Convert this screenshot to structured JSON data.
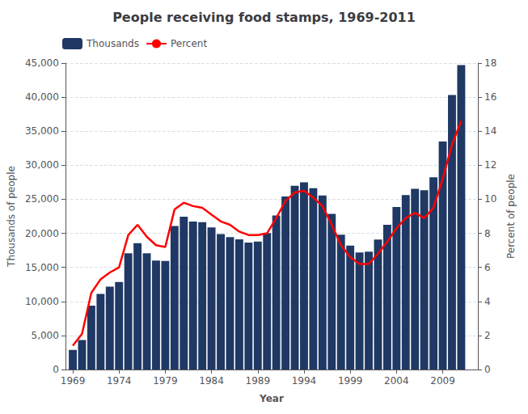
{
  "chart_data": {
    "type": "bar",
    "title": "People receiving food stamps, 1969-2011",
    "xlabel": "Year",
    "ylabel": "Thousands of people",
    "y2label": "Percent of people",
    "x": [
      1969,
      1970,
      1971,
      1972,
      1973,
      1974,
      1975,
      1976,
      1977,
      1978,
      1979,
      1980,
      1981,
      1982,
      1983,
      1984,
      1985,
      1986,
      1987,
      1988,
      1989,
      1990,
      1991,
      1992,
      1993,
      1994,
      1995,
      1996,
      1997,
      1998,
      1999,
      2000,
      2001,
      2002,
      2003,
      2004,
      2005,
      2006,
      2007,
      2008,
      2009,
      2010,
      2011
    ],
    "series": [
      {
        "name": "Thousands",
        "type": "bar",
        "color": "#1F3864",
        "values": [
          2878,
          4340,
          9368,
          11109,
          12166,
          12862,
          17064,
          18549,
          17077,
          16001,
          15942,
          21082,
          22430,
          21717,
          21625,
          20854,
          19899,
          19429,
          19113,
          18645,
          18800,
          20049,
          22625,
          25407,
          26987,
          27474,
          26619,
          25543,
          22858,
          19791,
          18183,
          17194,
          17318,
          19096,
          21250,
          23858,
          25628,
          26549,
          26316,
          28223,
          33490,
          40302,
          44709
        ]
      },
      {
        "name": "Percent",
        "type": "line",
        "color": "#FF0000",
        "axis": "y2",
        "values": [
          1.4,
          2.1,
          4.5,
          5.3,
          5.7,
          6.0,
          7.9,
          8.5,
          7.8,
          7.3,
          7.2,
          9.4,
          9.8,
          9.6,
          9.5,
          9.1,
          8.7,
          8.5,
          8.1,
          7.9,
          7.9,
          8.0,
          8.9,
          9.9,
          10.4,
          10.5,
          10.1,
          9.6,
          8.5,
          7.3,
          6.6,
          6.2,
          6.2,
          6.8,
          7.5,
          8.3,
          8.9,
          9.2,
          8.9,
          9.5,
          11.2,
          13.2,
          14.6
        ]
      }
    ],
    "xlim": [
      1968.2,
      2012.8
    ],
    "xticks": [
      1969,
      1974,
      1979,
      1984,
      1989,
      1994,
      1999,
      2004,
      2009
    ],
    "ylim": [
      0,
      45000
    ],
    "yticks": [
      0,
      {
        "value": 5000,
        "label": "5,000"
      },
      {
        "value": 10000,
        "label": "10,000"
      },
      {
        "value": 15000,
        "label": "15,000"
      },
      {
        "value": 20000,
        "label": "20,000"
      },
      {
        "value": 25000,
        "label": "25,000"
      },
      {
        "value": 30000,
        "label": "30,000"
      },
      {
        "value": 35000,
        "label": "35,000"
      },
      {
        "value": 40000,
        "label": "40,000"
      },
      {
        "value": 45000,
        "label": "45,000"
      }
    ],
    "y2lim": [
      0,
      18
    ],
    "y2ticks": [
      0,
      2,
      4,
      6,
      8,
      10,
      12,
      14,
      16,
      18
    ],
    "grid": true,
    "legend": "upper left"
  }
}
